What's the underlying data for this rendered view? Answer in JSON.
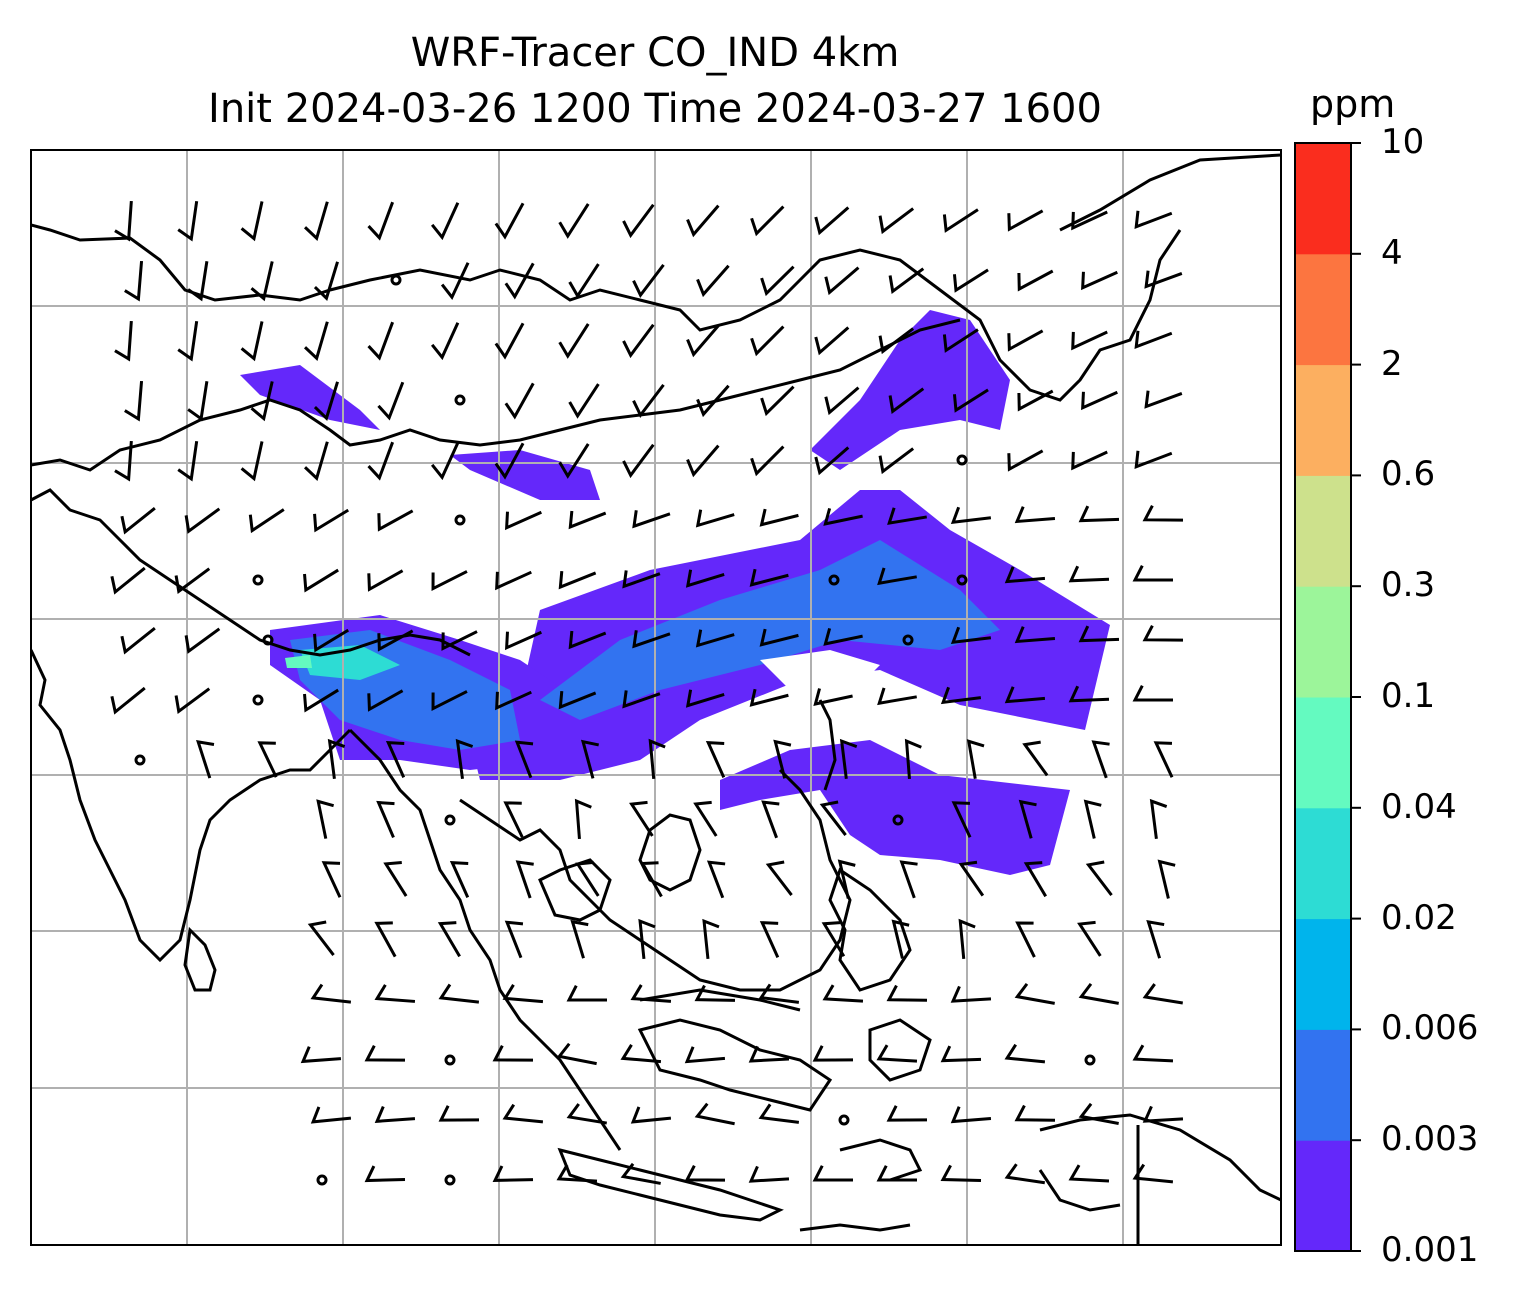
{
  "title_line1": "WRF-Tracer CO_IND 4km",
  "title_line2": "Init 2024-03-26 1200 Time 2024-03-27 1600",
  "colorbar": {
    "unit": "ppm",
    "levels": [
      "0.001",
      "0.003",
      "0.006",
      "0.02",
      "0.04",
      "0.1",
      "0.3",
      "0.6",
      "2",
      "4",
      "10"
    ],
    "colors": [
      "#6428fa",
      "#3273f0",
      "#00b4ec",
      "#2ddcd4",
      "#64fac0",
      "#9cf59a",
      "#cde18c",
      "#fcaf60",
      "#fc7540",
      "#fa2d1e"
    ]
  },
  "map": {
    "grid": "on",
    "features": [
      "coastlines",
      "country-borders",
      "wind-barbs",
      "tracer-concentration-contours"
    ]
  }
}
